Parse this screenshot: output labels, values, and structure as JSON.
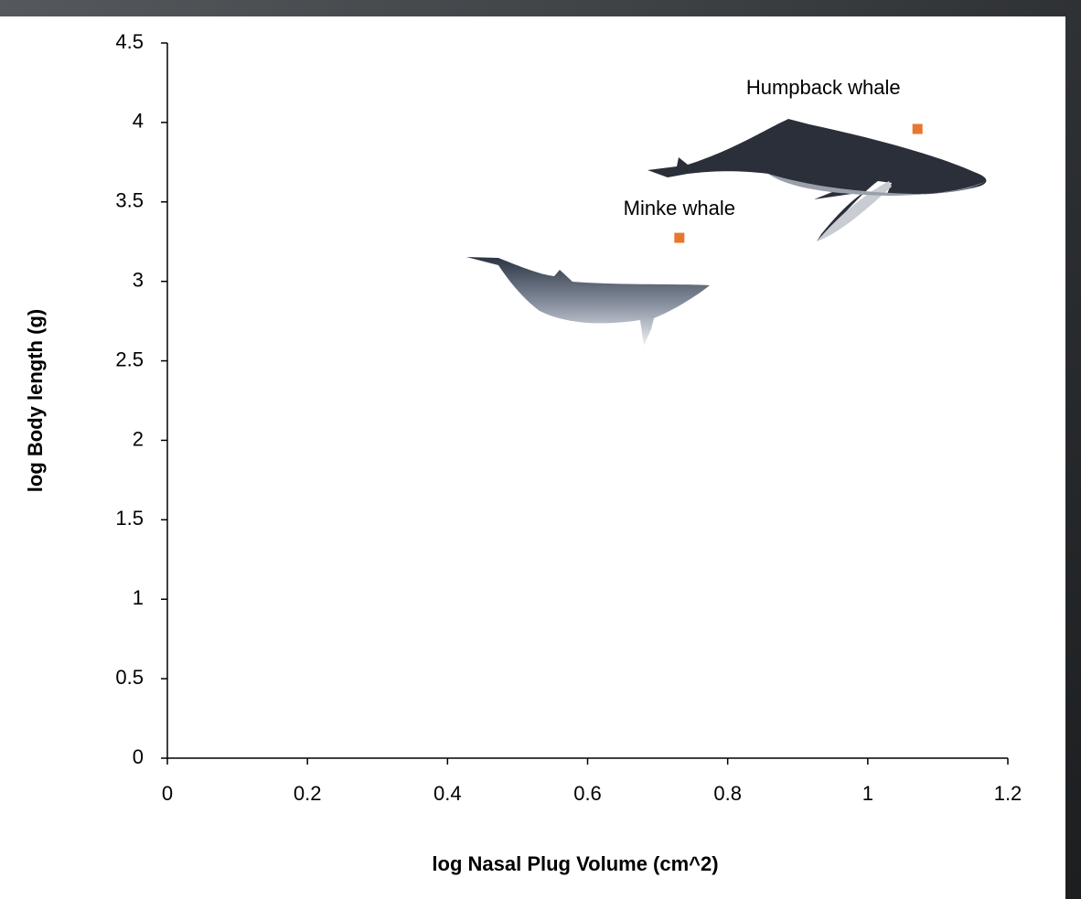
{
  "chart_data": {
    "type": "scatter",
    "x_label": "log Nasal Plug Volume (cm^2)",
    "y_label": "log Body length (g)",
    "x": [
      0.731,
      1.071
    ],
    "values": [
      3.274,
      3.959
    ],
    "point_labels": [
      "Minke whale",
      "Humpback whale"
    ],
    "color": "#e8772e",
    "xlim": [
      0,
      1.2
    ],
    "xticks": [
      0,
      0.2,
      0.4,
      0.6,
      0.8,
      1,
      1.2
    ],
    "ylim": [
      0,
      4.5
    ],
    "yticks": [
      0,
      0.5,
      1,
      1.5,
      2,
      2.5,
      3,
      3.5,
      4,
      4.5
    ],
    "grid": false
  }
}
